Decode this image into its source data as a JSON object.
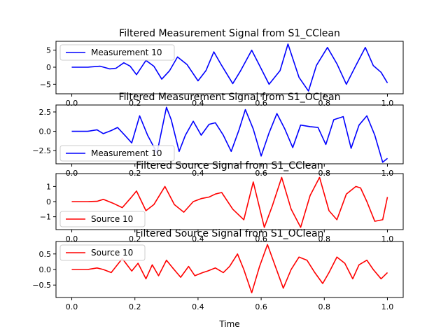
{
  "figure": {
    "xlabel": "Time"
  },
  "chart_data": [
    {
      "type": "line",
      "title": "Filtered Measurement Signal from S1_CClean",
      "xlabel": "",
      "ylabel": "",
      "xlim": [
        -0.05,
        1.05
      ],
      "ylim": [
        -7.8,
        7.6
      ],
      "xticks": [
        "0.0",
        "0.2",
        "0.4",
        "0.6",
        "0.8",
        "1.0"
      ],
      "yticks": [
        -5,
        0,
        5
      ],
      "ytick_labels": [
        "−5",
        "0",
        "5"
      ],
      "legend": "upper-left",
      "series": [
        {
          "name": "Measurement 10",
          "color": "#0000ff",
          "x": [
            0,
            0.05,
            0.09,
            0.12,
            0.14,
            0.165,
            0.185,
            0.205,
            0.235,
            0.26,
            0.285,
            0.31,
            0.335,
            0.365,
            0.4,
            0.425,
            0.45,
            0.475,
            0.51,
            0.535,
            0.57,
            0.595,
            0.625,
            0.66,
            0.685,
            0.72,
            0.75,
            0.775,
            0.81,
            0.84,
            0.87,
            0.9,
            0.93,
            0.955,
            0.98,
            1.0
          ],
          "y": [
            0,
            0,
            0.3,
            -0.5,
            -0.3,
            1.3,
            0.3,
            -2.2,
            2.0,
            0.3,
            -3.5,
            -1.0,
            3.0,
            0.8,
            -4.0,
            -1.0,
            4.5,
            0.5,
            -4.8,
            -1.0,
            5.0,
            0.5,
            -5.0,
            -1.0,
            6.8,
            -3.0,
            -7.0,
            0.5,
            5.8,
            1.0,
            -5.0,
            0.5,
            5.8,
            0.5,
            -1.5,
            -4.6
          ]
        }
      ]
    },
    {
      "type": "line",
      "title": "Filtered Measurement Signal from S1_OClean",
      "xlabel": "",
      "ylabel": "",
      "xlim": [
        -0.05,
        1.05
      ],
      "ylim": [
        -4.2,
        3.4
      ],
      "xticks": [
        "0.0",
        "0.2",
        "0.4",
        "0.6",
        "0.8",
        "1.0"
      ],
      "yticks": [
        -2.5,
        0.0,
        2.5
      ],
      "ytick_labels": [
        "−2.5",
        "0.0",
        "2.5"
      ],
      "legend": "lower-left",
      "series": [
        {
          "name": "Measurement 10",
          "color": "#0000ff",
          "x": [
            0,
            0.05,
            0.08,
            0.1,
            0.125,
            0.145,
            0.17,
            0.19,
            0.215,
            0.24,
            0.27,
            0.3,
            0.315,
            0.34,
            0.36,
            0.385,
            0.41,
            0.435,
            0.455,
            0.48,
            0.505,
            0.53,
            0.55,
            0.575,
            0.6,
            0.625,
            0.65,
            0.675,
            0.7,
            0.725,
            0.755,
            0.78,
            0.805,
            0.83,
            0.86,
            0.885,
            0.91,
            0.935,
            0.96,
            0.985,
            1.0
          ],
          "y": [
            0,
            0,
            0.2,
            -0.3,
            0.1,
            0.5,
            -0.6,
            -1.5,
            2.0,
            -0.5,
            -2.8,
            3.1,
            1.5,
            -2.6,
            -0.5,
            1.3,
            -0.5,
            0.9,
            1.1,
            -0.5,
            -2.6,
            0.2,
            2.8,
            0.3,
            -3.2,
            -0.2,
            2.3,
            0.3,
            -2.1,
            0.8,
            0.6,
            0.5,
            -1.7,
            1.5,
            1.9,
            -2.2,
            0.8,
            2.0,
            -0.5,
            -4.0,
            -3.5
          ]
        }
      ]
    },
    {
      "type": "line",
      "title": "Filtered Source Signal from S1_CClean",
      "xlabel": "",
      "ylabel": "",
      "xlim": [
        -0.05,
        1.05
      ],
      "ylim": [
        -1.85,
        1.85
      ],
      "xticks": [
        "0.0",
        "0.2",
        "0.4",
        "0.6",
        "0.8",
        "1.0"
      ],
      "yticks": [
        -1,
        0,
        1
      ],
      "ytick_labels": [
        "−1",
        "0",
        "1"
      ],
      "legend": "lower-left",
      "series": [
        {
          "name": "Source 10",
          "color": "#ff0000",
          "x": [
            0,
            0.05,
            0.08,
            0.1,
            0.13,
            0.16,
            0.185,
            0.205,
            0.235,
            0.26,
            0.295,
            0.325,
            0.355,
            0.385,
            0.41,
            0.435,
            0.455,
            0.475,
            0.51,
            0.545,
            0.575,
            0.61,
            0.635,
            0.665,
            0.695,
            0.725,
            0.755,
            0.785,
            0.815,
            0.84,
            0.87,
            0.9,
            0.915,
            0.935,
            0.96,
            0.985,
            1.0
          ],
          "y": [
            0,
            0,
            0.02,
            0.15,
            -0.1,
            -0.4,
            0.2,
            0.7,
            -0.6,
            -0.2,
            1.0,
            -0.2,
            -0.7,
            0.0,
            0.2,
            0.3,
            0.5,
            0.6,
            -0.5,
            -1.2,
            1.3,
            -1.7,
            -0.3,
            1.6,
            -0.5,
            -1.7,
            0.4,
            1.6,
            -0.6,
            -1.2,
            0.5,
            1.0,
            0.9,
            0.0,
            -1.3,
            -1.2,
            0.3
          ]
        }
      ]
    },
    {
      "type": "line",
      "title": "Filtered Source Signal from S1_OClean",
      "xlabel": "Time",
      "ylabel": "",
      "xlim": [
        -0.05,
        1.05
      ],
      "ylim": [
        -0.9,
        0.9
      ],
      "xticks": [
        "0.0",
        "0.2",
        "0.4",
        "0.6",
        "0.8",
        "1.0"
      ],
      "yticks": [
        -0.5,
        0.0,
        0.5
      ],
      "ytick_labels": [
        "−0.5",
        "0.0",
        "0.5"
      ],
      "legend": "upper-left",
      "series": [
        {
          "name": "Source 10",
          "color": "#ff0000",
          "x": [
            0,
            0.05,
            0.08,
            0.1,
            0.125,
            0.16,
            0.19,
            0.21,
            0.235,
            0.255,
            0.275,
            0.3,
            0.32,
            0.345,
            0.37,
            0.39,
            0.415,
            0.43,
            0.455,
            0.48,
            0.5,
            0.525,
            0.545,
            0.57,
            0.595,
            0.62,
            0.645,
            0.67,
            0.695,
            0.72,
            0.745,
            0.77,
            0.795,
            0.815,
            0.84,
            0.865,
            0.89,
            0.91,
            0.935,
            0.955,
            0.98,
            1.0
          ],
          "y": [
            0,
            0,
            0.05,
            0.0,
            -0.1,
            0.35,
            -0.05,
            0.2,
            -0.3,
            0.15,
            -0.2,
            0.3,
            0.05,
            -0.25,
            0.1,
            -0.2,
            -0.1,
            -0.05,
            0.05,
            -0.1,
            0.1,
            0.5,
            0.0,
            -0.75,
            0.1,
            0.8,
            0.1,
            -0.6,
            0.0,
            0.4,
            0.3,
            -0.1,
            -0.45,
            -0.1,
            0.4,
            0.2,
            -0.3,
            0.15,
            0.3,
            0.0,
            -0.3,
            -0.1
          ]
        }
      ]
    }
  ]
}
